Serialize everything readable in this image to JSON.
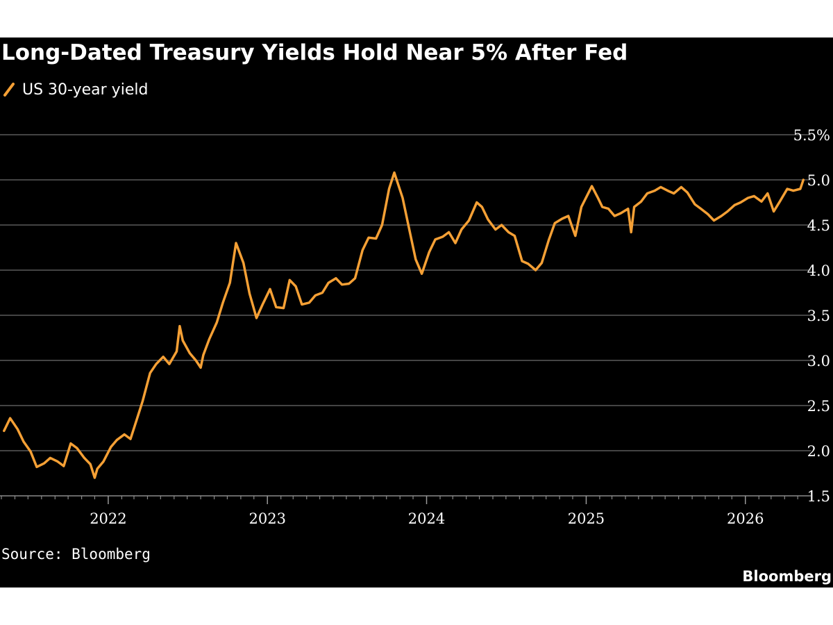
{
  "chart_data": {
    "type": "line",
    "title": "Long-Dated Treasury Yields Hold Near 5% After Fed",
    "source": "Source: Bloomberg",
    "brand": "Bloomberg",
    "xlabel": "",
    "ylabel": "",
    "ylim": [
      1.5,
      5.5
    ],
    "xlim": [
      "2021-05-01",
      "2026-05-31"
    ],
    "x_tick_labels": [
      "2022",
      "2023",
      "2024",
      "2025",
      "2026"
    ],
    "x_tick_dates": [
      "2022-01-01",
      "2023-01-01",
      "2024-01-01",
      "2025-01-01",
      "2026-01-01"
    ],
    "y_ticks": [
      1.5,
      2.0,
      2.5,
      3.0,
      3.5,
      4.0,
      4.5,
      5.0,
      5.5
    ],
    "y_tick_labels": [
      "1.5",
      "2.0",
      "2.5",
      "3.0",
      "3.5",
      "4.0",
      "4.5",
      "5.0",
      "5.5%"
    ],
    "grid": true,
    "legend_position": "top-left",
    "series": [
      {
        "name": "US 30-year yield",
        "color": "#f5a035",
        "x": [
          "2021-05-07",
          "2021-05-21",
          "2021-06-07",
          "2021-06-21",
          "2021-07-07",
          "2021-07-21",
          "2021-08-07",
          "2021-08-21",
          "2021-09-07",
          "2021-09-21",
          "2021-10-07",
          "2021-10-21",
          "2021-11-07",
          "2021-11-21",
          "2021-12-01",
          "2021-12-07",
          "2021-12-21",
          "2022-01-07",
          "2022-01-21",
          "2022-02-07",
          "2022-02-21",
          "2022-03-07",
          "2022-03-21",
          "2022-04-07",
          "2022-04-21",
          "2022-05-07",
          "2022-05-21",
          "2022-06-07",
          "2022-06-14",
          "2022-06-21",
          "2022-07-07",
          "2022-07-21",
          "2022-08-01",
          "2022-08-07",
          "2022-08-21",
          "2022-09-07",
          "2022-09-21",
          "2022-10-07",
          "2022-10-21",
          "2022-11-07",
          "2022-11-21",
          "2022-12-07",
          "2022-12-21",
          "2023-01-07",
          "2023-01-21",
          "2023-02-07",
          "2023-02-21",
          "2023-03-07",
          "2023-03-21",
          "2023-04-07",
          "2023-04-21",
          "2023-05-07",
          "2023-05-21",
          "2023-06-07",
          "2023-06-21",
          "2023-07-07",
          "2023-07-21",
          "2023-08-07",
          "2023-08-21",
          "2023-09-07",
          "2023-09-21",
          "2023-10-07",
          "2023-10-19",
          "2023-11-07",
          "2023-11-21",
          "2023-12-07",
          "2023-12-21",
          "2024-01-07",
          "2024-01-21",
          "2024-02-07",
          "2024-02-21",
          "2024-03-07",
          "2024-03-21",
          "2024-04-07",
          "2024-04-25",
          "2024-05-07",
          "2024-05-21",
          "2024-06-07",
          "2024-06-21",
          "2024-07-07",
          "2024-07-21",
          "2024-08-07",
          "2024-08-21",
          "2024-09-07",
          "2024-09-21",
          "2024-10-07",
          "2024-10-21",
          "2024-11-07",
          "2024-11-21",
          "2024-12-07",
          "2024-12-21",
          "2025-01-14",
          "2025-01-28",
          "2025-02-07",
          "2025-02-21",
          "2025-03-07",
          "2025-03-21",
          "2025-04-07",
          "2025-04-14",
          "2025-04-21",
          "2025-05-07",
          "2025-05-21",
          "2025-06-07",
          "2025-06-21",
          "2025-07-07",
          "2025-07-21",
          "2025-08-07",
          "2025-08-21",
          "2025-09-07",
          "2025-09-21",
          "2025-10-07",
          "2025-10-21",
          "2025-11-07",
          "2025-11-21",
          "2025-12-07",
          "2025-12-21",
          "2026-01-07",
          "2026-01-21",
          "2026-02-07",
          "2026-02-21",
          "2026-03-07",
          "2026-03-21",
          "2026-04-07",
          "2026-04-21",
          "2026-05-07",
          "2026-05-14"
        ],
        "values": [
          2.22,
          2.36,
          2.24,
          2.1,
          1.99,
          1.82,
          1.86,
          1.92,
          1.88,
          1.83,
          2.08,
          2.03,
          1.92,
          1.85,
          1.7,
          1.8,
          1.88,
          2.04,
          2.12,
          2.18,
          2.13,
          2.34,
          2.55,
          2.86,
          2.96,
          3.04,
          2.96,
          3.1,
          3.38,
          3.22,
          3.08,
          3.0,
          2.92,
          3.06,
          3.24,
          3.42,
          3.64,
          3.86,
          4.3,
          4.08,
          3.74,
          3.47,
          3.62,
          3.79,
          3.59,
          3.58,
          3.89,
          3.82,
          3.62,
          3.64,
          3.72,
          3.75,
          3.86,
          3.91,
          3.84,
          3.85,
          3.91,
          4.22,
          4.36,
          4.35,
          4.5,
          4.9,
          5.08,
          4.8,
          4.48,
          4.12,
          3.96,
          4.2,
          4.34,
          4.37,
          4.42,
          4.3,
          4.45,
          4.55,
          4.75,
          4.7,
          4.56,
          4.45,
          4.5,
          4.42,
          4.38,
          4.1,
          4.07,
          4.0,
          4.08,
          4.33,
          4.52,
          4.57,
          4.6,
          4.38,
          4.7,
          4.93,
          4.8,
          4.7,
          4.68,
          4.6,
          4.63,
          4.68,
          4.42,
          4.7,
          4.76,
          4.85,
          4.88,
          4.92,
          4.88,
          4.85,
          4.92,
          4.86,
          4.73,
          4.68,
          4.62,
          4.55,
          4.6,
          4.65,
          4.72,
          4.75,
          4.8,
          4.82,
          4.76,
          4.85,
          4.65,
          4.76,
          4.9,
          4.88,
          4.9,
          5.0
        ]
      }
    ]
  }
}
